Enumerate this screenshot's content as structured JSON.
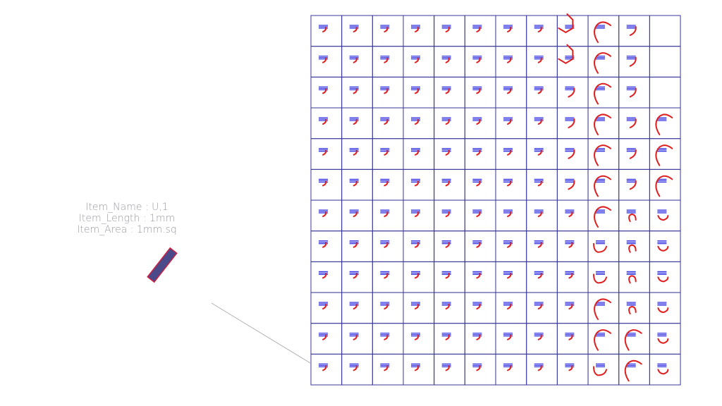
{
  "item_info": {
    "name_line": "Item_Name : U,1",
    "length_line": "Item_Length : 1mm",
    "area_line": "Item_Area : 1mm.sq"
  },
  "colors": {
    "grid": "#3a3a9a",
    "shape": "#e02020",
    "label_mark": "#2a2ae0",
    "item_fill": "#4a4a8a",
    "item_outline": "#d02040",
    "leader_line": "#b0b0b0"
  },
  "grid": {
    "columns": 12,
    "rows": [
      "hhhhhhhhLCj.",
      "hhhhhhhhLCj.",
      "hhhhhhhhjCj.",
      "hhhhhhhhjCjC",
      "hhhhhhhhjCjC",
      "hhhhhhhhjCjC",
      "hhhhhhhhhCnu",
      "hhhhhhhhhUnu",
      "hhhhhhhhhUnu",
      "hhhhhhhhhCnu",
      "hhhhhhhhhCCu",
      "hhhhhhhhhUCu"
    ]
  }
}
